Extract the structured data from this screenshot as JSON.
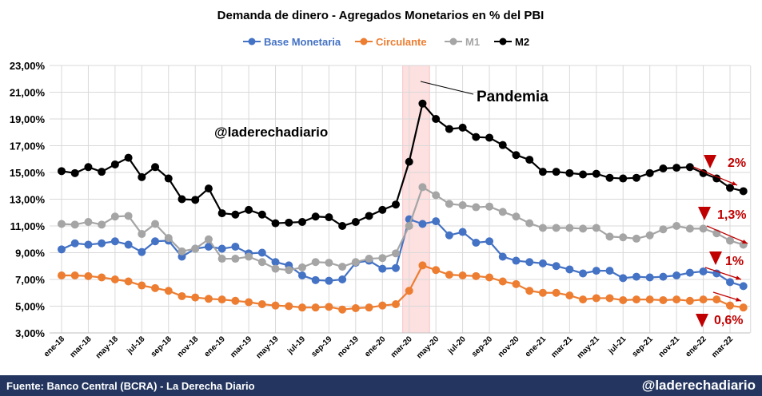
{
  "chart_data": {
    "type": "line",
    "title": "Demanda de dinero - Agregados Monetarios en % del PBI",
    "xlabel": "",
    "ylabel": "",
    "ylim": [
      3,
      23
    ],
    "yticks": [
      "3,00%",
      "5,00%",
      "7,00%",
      "9,00%",
      "11,00%",
      "13,00%",
      "15,00%",
      "17,00%",
      "19,00%",
      "21,00%",
      "23,00%"
    ],
    "ytick_values": [
      3,
      5,
      7,
      9,
      11,
      13,
      15,
      17,
      19,
      21,
      23
    ],
    "grid": true,
    "legend": "top",
    "categories": [
      "ene-18",
      "feb-18",
      "mar-18",
      "abr-18",
      "may-18",
      "jun-18",
      "jul-18",
      "ago-18",
      "sep-18",
      "oct-18",
      "nov-18",
      "dic-18",
      "ene-19",
      "feb-19",
      "mar-19",
      "abr-19",
      "may-19",
      "jun-19",
      "jul-19",
      "ago-19",
      "sep-19",
      "oct-19",
      "nov-19",
      "dic-19",
      "ene-20",
      "feb-20",
      "mar-20",
      "abr-20",
      "may-20",
      "jun-20",
      "jul-20",
      "ago-20",
      "sep-20",
      "oct-20",
      "nov-20",
      "dic-20",
      "ene-21",
      "feb-21",
      "mar-21",
      "abr-21",
      "may-21",
      "jun-21",
      "jul-21",
      "ago-21",
      "sep-21",
      "oct-21",
      "nov-21",
      "dic-21",
      "ene-22",
      "feb-22",
      "mar-22",
      "abr-22"
    ],
    "shown_tick_every": 2,
    "series": [
      {
        "name": "Base Monetaria",
        "color": "#4472c4",
        "values": [
          9.25,
          9.7,
          9.6,
          9.7,
          9.85,
          9.6,
          9.05,
          9.85,
          9.9,
          8.7,
          9.3,
          9.45,
          9.3,
          9.45,
          8.95,
          9.0,
          8.3,
          8.05,
          7.3,
          6.95,
          6.9,
          7.0,
          8.25,
          8.4,
          7.8,
          7.85,
          11.5,
          11.15,
          11.35,
          10.3,
          10.55,
          9.75,
          9.85,
          8.7,
          8.4,
          8.3,
          8.2,
          8.0,
          7.75,
          7.45,
          7.65,
          7.65,
          7.1,
          7.2,
          7.15,
          7.2,
          7.3,
          7.5,
          7.6,
          7.45,
          6.8,
          6.5
        ]
      },
      {
        "name": "Circulante",
        "color": "#ed7d31",
        "values": [
          7.3,
          7.3,
          7.25,
          7.15,
          7.0,
          6.85,
          6.55,
          6.35,
          6.15,
          5.75,
          5.65,
          5.55,
          5.5,
          5.4,
          5.3,
          5.15,
          5.05,
          5.0,
          4.9,
          4.9,
          4.95,
          4.75,
          4.85,
          4.9,
          5.05,
          5.15,
          6.15,
          8.05,
          7.7,
          7.35,
          7.3,
          7.25,
          7.15,
          6.85,
          6.65,
          6.15,
          6.0,
          6.0,
          5.8,
          5.5,
          5.6,
          5.6,
          5.45,
          5.5,
          5.5,
          5.45,
          5.5,
          5.4,
          5.5,
          5.5,
          5.05,
          4.9
        ]
      },
      {
        "name": "M1",
        "color": "#a5a5a5",
        "values": [
          11.15,
          11.1,
          11.3,
          11.1,
          11.7,
          11.75,
          10.4,
          11.15,
          10.1,
          9.1,
          9.3,
          10.0,
          8.55,
          8.55,
          8.7,
          8.3,
          7.8,
          7.7,
          7.9,
          8.3,
          8.25,
          7.95,
          8.3,
          8.55,
          8.6,
          8.95,
          11.0,
          13.9,
          13.3,
          12.65,
          12.55,
          12.4,
          12.45,
          12.05,
          11.7,
          11.2,
          10.85,
          10.85,
          10.85,
          10.8,
          10.85,
          10.2,
          10.15,
          10.05,
          10.3,
          10.75,
          11.0,
          10.8,
          10.8,
          10.45,
          9.9,
          9.6
        ]
      },
      {
        "name": "M2",
        "color": "#000000",
        "values": [
          15.1,
          14.95,
          15.4,
          15.05,
          15.6,
          16.1,
          14.65,
          15.4,
          14.55,
          13.0,
          12.95,
          13.8,
          11.95,
          11.85,
          12.2,
          11.85,
          11.2,
          11.25,
          11.3,
          11.7,
          11.65,
          11.0,
          11.3,
          11.75,
          12.2,
          12.6,
          15.8,
          20.15,
          19.0,
          18.25,
          18.35,
          17.65,
          17.6,
          17.05,
          16.3,
          15.95,
          15.05,
          15.05,
          14.95,
          14.85,
          14.9,
          14.6,
          14.55,
          14.6,
          14.95,
          15.3,
          15.35,
          15.4,
          14.95,
          14.55,
          13.85,
          13.6
        ]
      }
    ],
    "highlight_band": {
      "from": "mar-20",
      "to": "may-20",
      "color": "#fde0e0"
    },
    "annotations": {
      "pandemia": "Pandemia",
      "watermark": "@laderechadiario",
      "drops": [
        {
          "series": "M2",
          "label": "2%"
        },
        {
          "series": "M1",
          "label": "1,3%"
        },
        {
          "series": "Base Monetaria",
          "label": "1%"
        },
        {
          "series": "Circulante",
          "label": "0,6%"
        }
      ],
      "drop_color": "#c00000"
    }
  },
  "footer": {
    "source": "Fuente: Banco Central (BCRA) - La Derecha Diario",
    "handle": "@laderechadiario"
  }
}
